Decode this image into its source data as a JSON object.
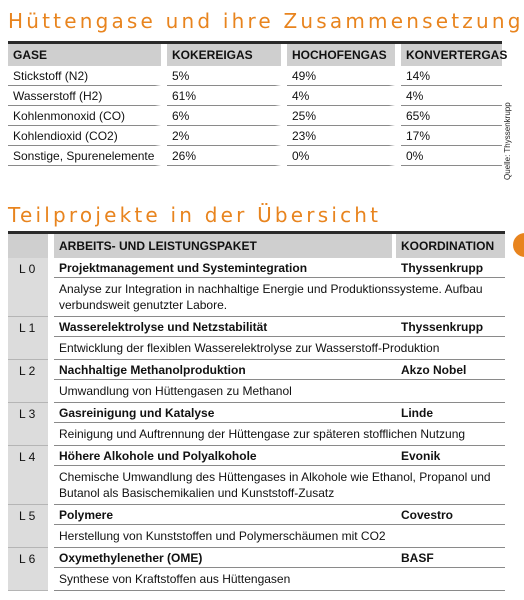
{
  "section1": {
    "title": "Hüttengase und ihre Zusammensetzung",
    "headers": [
      "GASE",
      "KOKEREIGAS",
      "HOCHOFENGAS",
      "KONVERTERGAS"
    ],
    "rows": [
      [
        "Stickstoff (N2)",
        "5%",
        "49%",
        "14%"
      ],
      [
        "Wasserstoff (H2)",
        "61%",
        "4%",
        "4%"
      ],
      [
        "Kohlenmonoxid (CO)",
        "6%",
        "25%",
        "65%"
      ],
      [
        "Kohlendioxid (CO2)",
        "2%",
        "23%",
        "17%"
      ],
      [
        "Sonstige, Spurenelemente",
        "26%",
        "0%",
        "0%"
      ]
    ],
    "source": "Quelle: Thyssenkrupp"
  },
  "section2": {
    "title": "Teilprojekte in der Übersicht",
    "headers": [
      "ARBEITS- UND LEISTUNGSPAKET",
      "KOORDINATION"
    ],
    "items": [
      {
        "code": "L 0",
        "name": "Projektmanagement und Systemintegration",
        "coordination": "Thyssenkrupp",
        "description": "Analyse zur Integration in nachhaltige Energie und Produktionssysteme. Aufbau verbundsweit genutzter Labore."
      },
      {
        "code": "L 1",
        "name": "Wasserelektrolyse und Netzstabilität",
        "coordination": "Thyssenkrupp",
        "description": "Entwicklung der flexiblen Wasserelektrolyse zur Wasserstoff-Produktion"
      },
      {
        "code": "L 2",
        "name": "Nachhaltige Methanolproduktion",
        "coordination": "Akzo Nobel",
        "description": "Umwandlung von Hüttengasen zu Methanol"
      },
      {
        "code": "L 3",
        "name": "Gasreinigung und Katalyse",
        "coordination": "Linde",
        "description": "Reinigung und Auftrennung der Hüttengase zur späteren stofflichen Nutzung"
      },
      {
        "code": "L 4",
        "name": "Höhere Alkohole und Polyalkohole",
        "coordination": "Evonik",
        "description": "Chemische Umwandlung des Hüttengases in Alkohole wie Ethanol, Propanol und Butanol als Basischemikalien und Kunststoff-Zusatz"
      },
      {
        "code": "L 5",
        "name": "Polymere",
        "coordination": "Covestro",
        "description": "Herstellung von Kunststoffen und Polymerschäumen mit CO2"
      },
      {
        "code": "L 6",
        "name": "Oxymethylenether (OME)",
        "coordination": "BASF",
        "description": "Synthese von Kraftstoffen aus Hüttengasen"
      }
    ]
  },
  "colors": {
    "accent": "#e8841e",
    "header_bg": "#cfcfcf",
    "side_bg": "#dcdcdc"
  }
}
